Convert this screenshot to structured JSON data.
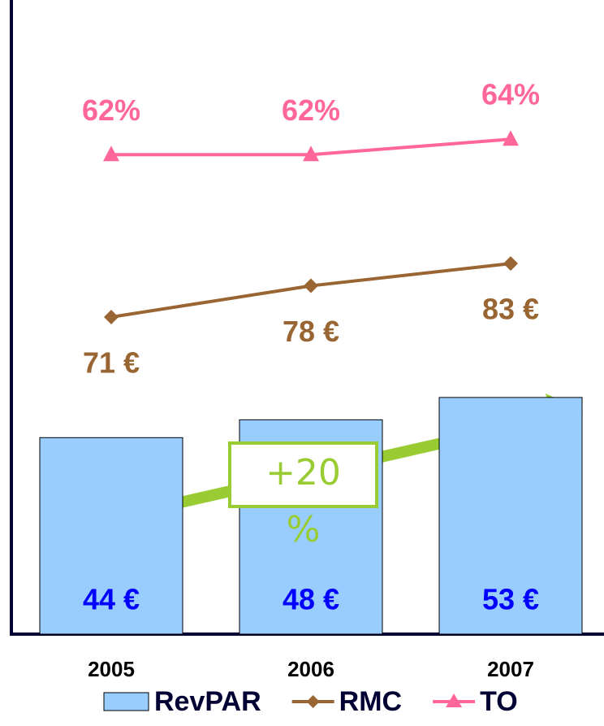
{
  "chart_data": {
    "type": "bar-line",
    "categories": [
      "2005",
      "2006",
      "2007"
    ],
    "series": [
      {
        "name": "RevPAR",
        "type": "bar",
        "color": "#99ccff",
        "values": [
          44,
          48,
          53
        ],
        "value_labels": [
          "44 €",
          "48 €",
          "53 €"
        ]
      },
      {
        "name": "RMC",
        "type": "line",
        "color": "#996633",
        "values": [
          71,
          78,
          83
        ],
        "value_labels": [
          "71 €",
          "78 €",
          "83 €"
        ]
      },
      {
        "name": "TO",
        "type": "line",
        "axis": "y2",
        "color": "#ff6699",
        "values": [
          62,
          62,
          64
        ],
        "value_labels": [
          "62%",
          "62%",
          "64%"
        ]
      }
    ],
    "ylim": [
      0,
      142
    ],
    "y2lim": [
      0,
      82
    ],
    "annotation": "+20 %",
    "annotation_color": "#99cc33"
  }
}
